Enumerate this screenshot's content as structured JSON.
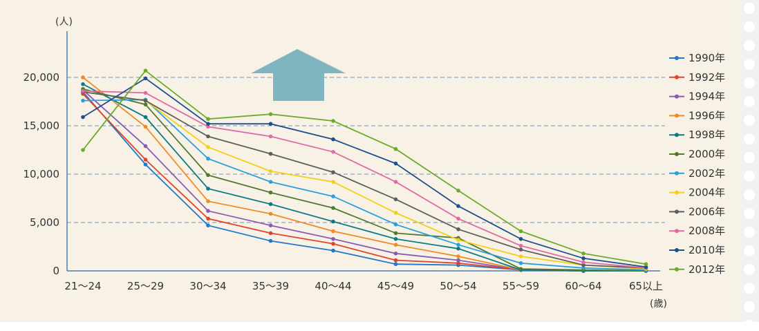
{
  "chart_data": {
    "type": "line",
    "y_unit_label": "(人)",
    "x_unit_label": "(歳)",
    "categories": [
      "21〜24",
      "25〜29",
      "30〜34",
      "35〜39",
      "40〜44",
      "45〜49",
      "50〜54",
      "55〜59",
      "60〜64",
      "65以上"
    ],
    "ylim": [
      0,
      22000
    ],
    "y_ticks": [
      0,
      5000,
      10000,
      15000,
      20000
    ],
    "y_tick_labels": [
      "0",
      "5,000",
      "10,000",
      "15,000",
      "20,000"
    ],
    "grid": "horizontal-dashed",
    "legend_position": "right",
    "series": [
      {
        "name": "1990年",
        "color": "#1f78c8",
        "values": [
          18500,
          11000,
          4700,
          3100,
          2100,
          700,
          600,
          100,
          0,
          0
        ]
      },
      {
        "name": "1992年",
        "color": "#e2432f",
        "values": [
          18300,
          11500,
          5400,
          3900,
          2800,
          1100,
          800,
          100,
          0,
          0
        ]
      },
      {
        "name": "1994年",
        "color": "#8a5bb5",
        "values": [
          18700,
          12900,
          6200,
          4700,
          3300,
          1800,
          1100,
          100,
          0,
          0
        ]
      },
      {
        "name": "1996年",
        "color": "#f08a24",
        "values": [
          20000,
          14900,
          7200,
          5900,
          4100,
          2700,
          1500,
          100,
          0,
          0
        ]
      },
      {
        "name": "1998年",
        "color": "#0b7a86",
        "values": [
          19300,
          15900,
          8500,
          6900,
          5100,
          3300,
          2300,
          100,
          0,
          0
        ]
      },
      {
        "name": "2000年",
        "color": "#4f7a2c",
        "values": [
          18800,
          17200,
          9900,
          8100,
          6500,
          3900,
          3400,
          200,
          100,
          0
        ]
      },
      {
        "name": "2002年",
        "color": "#2a9fdc",
        "values": [
          17600,
          17700,
          11600,
          9200,
          7700,
          4800,
          2700,
          800,
          300,
          100
        ]
      },
      {
        "name": "2004年",
        "color": "#f2cf1a",
        "values": [
          18500,
          17600,
          12800,
          10300,
          9200,
          6000,
          3200,
          1500,
          600,
          200
        ]
      },
      {
        "name": "2006年",
        "color": "#5e5e5e",
        "values": [
          18500,
          17600,
          13900,
          12100,
          10200,
          7400,
          4300,
          2200,
          600,
          300
        ]
      },
      {
        "name": "2008年",
        "color": "#e06aa5",
        "values": [
          18600,
          18400,
          14900,
          13900,
          12300,
          9200,
          5400,
          2600,
          900,
          300
        ]
      },
      {
        "name": "2010年",
        "color": "#1d4f8e",
        "values": [
          15900,
          19900,
          15200,
          15200,
          13600,
          11100,
          6700,
          3300,
          1300,
          400
        ]
      },
      {
        "name": "2012年",
        "color": "#6eaa2a",
        "values": [
          12500,
          20700,
          15700,
          16200,
          15500,
          12600,
          8300,
          4100,
          1800,
          700
        ]
      }
    ]
  }
}
